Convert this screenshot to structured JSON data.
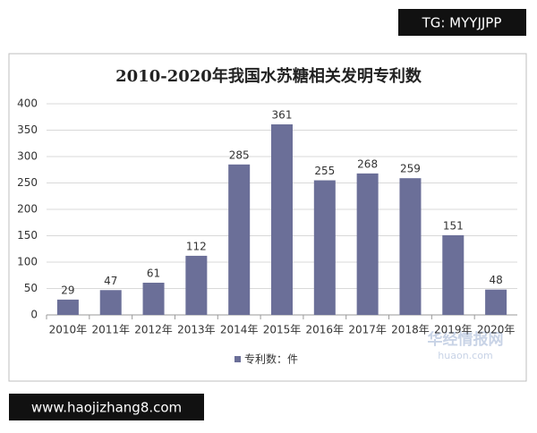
{
  "chart_data": {
    "type": "bar",
    "title": "2010-2020年我国水苏糖相关发明专利数",
    "categories": [
      "2010年",
      "2011年",
      "2012年",
      "2013年",
      "2014年",
      "2015年",
      "2016年",
      "2017年",
      "2018年",
      "2019年",
      "2020年"
    ],
    "series": [
      {
        "name": "专利数：件",
        "color": "#6b6f98",
        "values": [
          29,
          47,
          61,
          112,
          285,
          361,
          255,
          268,
          259,
          151,
          48
        ]
      }
    ],
    "ylim": [
      0,
      400
    ],
    "yticks": [
      0,
      50,
      100,
      150,
      200,
      250,
      300,
      350,
      400
    ],
    "grid": true,
    "legend": "bottom"
  },
  "overlays": {
    "top_tag": "TG: MYYJJPP",
    "bottom_url": "www.haojizhang8.com",
    "watermark_cn": "华经情报网",
    "watermark_en": "huaon.com"
  }
}
